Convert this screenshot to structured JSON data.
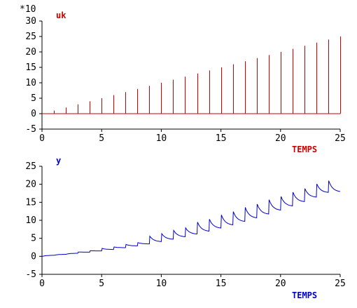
{
  "chart_data": [
    {
      "type": "bar",
      "title": "uk",
      "xlabel": "TEMPS",
      "ylabel": "",
      "scale_note": "*10",
      "xlim": [
        0,
        25
      ],
      "ylim": [
        -5,
        30
      ],
      "xticks": [
        0,
        5,
        10,
        15,
        20,
        25
      ],
      "yticks": [
        -5,
        0,
        5,
        10,
        15,
        20,
        25,
        30
      ],
      "color": "#cc0000",
      "x": [
        1,
        2,
        3,
        4,
        5,
        6,
        7,
        8,
        9,
        10,
        11,
        12,
        13,
        14,
        15,
        16,
        17,
        18,
        19,
        20,
        21,
        22,
        23,
        24,
        25
      ],
      "values": [
        1,
        2,
        3,
        4,
        5,
        6,
        7,
        8,
        9,
        10,
        11,
        12,
        13,
        14,
        15,
        16,
        17,
        18,
        19,
        20,
        21,
        22,
        23,
        24,
        25
      ]
    },
    {
      "type": "line",
      "title": "y",
      "xlabel": "TEMPS",
      "ylabel": "",
      "xlim": [
        0,
        25
      ],
      "ylim": [
        -5,
        25
      ],
      "xticks": [
        0,
        5,
        10,
        15,
        20,
        25
      ],
      "yticks": [
        -5,
        0,
        5,
        10,
        15,
        20,
        25
      ],
      "color": "#0000cc",
      "decay": 0.77,
      "x_step": [
        0,
        1,
        2,
        3,
        4,
        5,
        6,
        7,
        8,
        9,
        10,
        11,
        12,
        13,
        14,
        15,
        16,
        17,
        18,
        19,
        20,
        21,
        22,
        23,
        24
      ],
      "y_start": [
        0,
        0.28,
        0.55,
        0.85,
        1.15,
        1.5,
        1.9,
        2.4,
        2.9,
        3.45,
        4.1,
        4.75,
        5.45,
        6.2,
        7.0,
        7.85,
        8.75,
        9.7,
        10.7,
        11.75,
        12.85,
        14.0,
        15.2,
        16.45,
        17.75
      ],
      "y_peak": [
        0,
        0.3,
        0.58,
        1.2,
        1.55,
        2.2,
        2.6,
        3.3,
        3.8,
        5.6,
        6.3,
        7.2,
        7.9,
        9.5,
        10.3,
        11.5,
        12.4,
        13.6,
        14.5,
        15.7,
        16.6,
        17.8,
        18.8,
        20.1,
        21.0
      ],
      "y_end": 18.0
    }
  ]
}
